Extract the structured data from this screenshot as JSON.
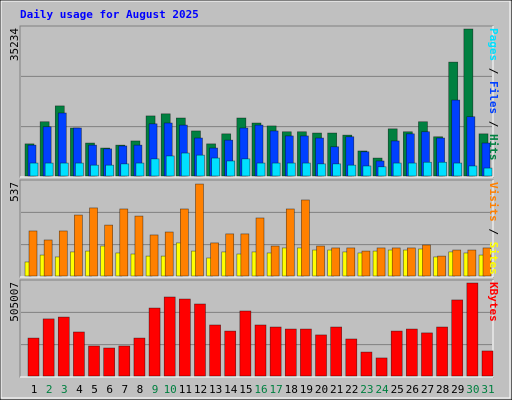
{
  "title": "Daily usage for August 2025",
  "categories": [
    "1",
    "2",
    "3",
    "4",
    "5",
    "6",
    "7",
    "8",
    "9",
    "10",
    "11",
    "12",
    "13",
    "14",
    "15",
    "16",
    "17",
    "18",
    "19",
    "20",
    "21",
    "22",
    "23",
    "24",
    "25",
    "26",
    "27",
    "28",
    "29",
    "30",
    "31"
  ],
  "category_colors": [
    "#000000",
    "#008040",
    "#008040",
    "#000000",
    "#000000",
    "#000000",
    "#000000",
    "#000000",
    "#008040",
    "#008040",
    "#000000",
    "#000000",
    "#000000",
    "#000000",
    "#000000",
    "#008040",
    "#008040",
    "#000000",
    "#000000",
    "#000000",
    "#000000",
    "#000000",
    "#008040",
    "#008040",
    "#000000",
    "#000000",
    "#000000",
    "#000000",
    "#000000",
    "#008040",
    "#008040"
  ],
  "legend_separator": " / ",
  "chart_data": [
    {
      "type": "bar",
      "ylim": [
        0,
        35234
      ],
      "yticks": [
        35234
      ],
      "series": [
        {
          "name": "Hits",
          "color": "#008040",
          "values": [
            7700,
            13000,
            16800,
            11500,
            7900,
            6700,
            7400,
            8400,
            14400,
            14900,
            13900,
            10800,
            7700,
            10100,
            13900,
            12700,
            12000,
            10600,
            10600,
            10300,
            10300,
            9800,
            6000,
            4300,
            11300,
            10600,
            13000,
            9400,
            27300,
            35234,
            10100
          ]
        },
        {
          "name": "Files",
          "color": "#0040ff",
          "values": [
            7400,
            11800,
            15100,
            11500,
            7400,
            6500,
            7200,
            7400,
            12500,
            12700,
            12200,
            9100,
            6700,
            8600,
            11500,
            12200,
            10800,
            9600,
            9600,
            9100,
            7000,
            9400,
            5800,
            3600,
            8400,
            10100,
            10600,
            9100,
            18200,
            14200,
            7900
          ]
        },
        {
          "name": "Pages",
          "color": "#00e0ff",
          "values": [
            3100,
            3100,
            3100,
            3100,
            2600,
            2600,
            2900,
            3100,
            4100,
            4800,
            5500,
            5000,
            4300,
            3600,
            4100,
            3100,
            3100,
            3100,
            3100,
            2900,
            2900,
            2600,
            2400,
            2200,
            3100,
            3100,
            3300,
            3300,
            3100,
            2400,
            1900
          ]
        }
      ]
    },
    {
      "type": "bar",
      "ylim": [
        0,
        537
      ],
      "yticks": [
        537
      ],
      "series": [
        {
          "name": "Sites",
          "color": "#ffff00",
          "values": [
            81,
            121,
            110,
            139,
            144,
            173,
            133,
            127,
            115,
            115,
            191,
            144,
            104,
            139,
            127,
            139,
            133,
            162,
            162,
            150,
            150,
            139,
            133,
            144,
            150,
            150,
            156,
            110,
            139,
            133,
            121
          ]
        },
        {
          "name": "Visits",
          "color": "#ff8000",
          "values": [
            260,
            208,
            260,
            352,
            393,
            294,
            387,
            346,
            237,
            254,
            387,
            531,
            191,
            243,
            243,
            335,
            173,
            387,
            439,
            173,
            162,
            162,
            144,
            162,
            162,
            162,
            179,
            115,
            150,
            150,
            162
          ]
        }
      ]
    },
    {
      "type": "bar",
      "ylim": [
        0,
        505007
      ],
      "yticks": [
        505007
      ],
      "series": [
        {
          "name": "KBytes",
          "color": "#ff0000",
          "values": [
            206000,
            310000,
            320000,
            239000,
            163000,
            152000,
            163000,
            206000,
            369000,
            429000,
            418000,
            391000,
            277000,
            244000,
            353000,
            277000,
            266000,
            255000,
            255000,
            223000,
            266000,
            201000,
            130000,
            98000,
            244000,
            255000,
            234000,
            266000,
            413000,
            505007,
            136000
          ]
        }
      ]
    }
  ]
}
